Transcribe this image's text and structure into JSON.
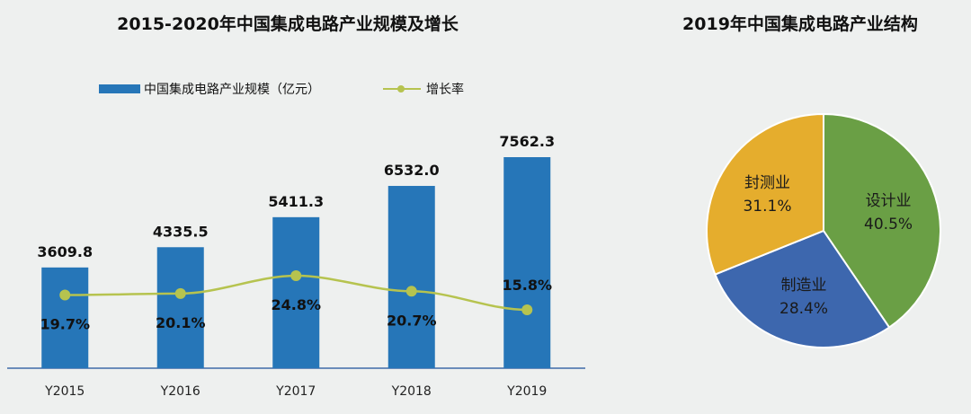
{
  "chart_data": [
    {
      "type": "bar",
      "title": "2015-2020年中国集成电路产业规模及增长",
      "categories": [
        "Y2015",
        "Y2016",
        "Y2017",
        "Y2018",
        "Y2019"
      ],
      "series": [
        {
          "name": "中国集成电路产业规模（亿元）",
          "type": "bar",
          "values": [
            3609.8,
            4335.5,
            5411.3,
            6532.0,
            7562.3
          ],
          "labels": [
            "3609.8",
            "4335.5",
            "5411.3",
            "6532.0",
            "7562.3"
          ],
          "color": "#2676b8"
        },
        {
          "name": "增长率",
          "type": "line",
          "values": [
            19.7,
            20.1,
            24.8,
            20.7,
            15.8
          ],
          "labels": [
            "19.7%",
            "20.1%",
            "24.8%",
            "20.7%",
            "15.8%"
          ],
          "color": "#b6c34f"
        }
      ],
      "legend_position": "top",
      "grid": false
    },
    {
      "type": "pie",
      "title": "2019年中国集成电路产业结构",
      "slices": [
        {
          "label": "设计业",
          "value": 40.5,
          "text": "40.5%",
          "color": "#6a9f45"
        },
        {
          "label": "制造业",
          "value": 28.4,
          "text": "28.4%",
          "color": "#3d67ae"
        },
        {
          "label": "封测业",
          "value": 31.1,
          "text": "31.1%",
          "color": "#e5ad2d"
        }
      ]
    }
  ]
}
